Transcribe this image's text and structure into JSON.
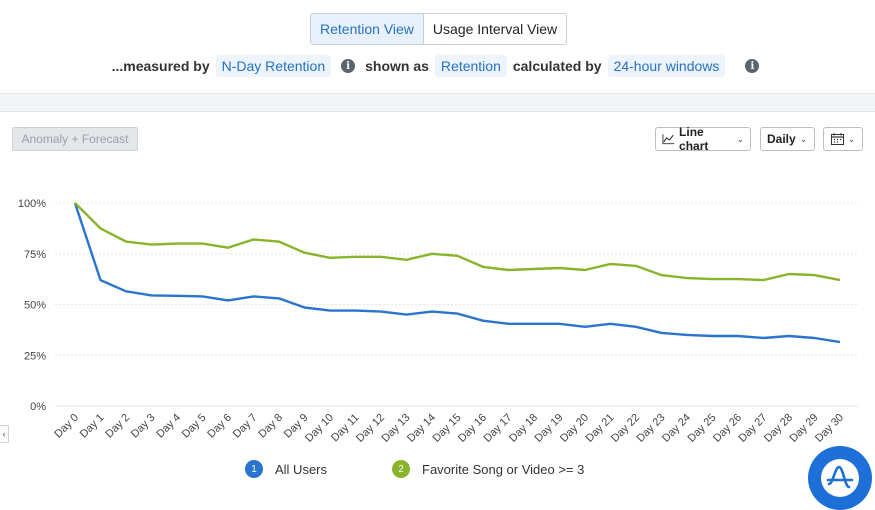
{
  "view_toggle": {
    "options": [
      "Retention View",
      "Usage Interval View"
    ],
    "active": "Retention View"
  },
  "measure_row": {
    "prefix": "...measured by",
    "metric": "N-Day Retention",
    "shown_as_label": "shown as",
    "shown_as": "Retention",
    "calc_label": "calculated by",
    "calc": "24-hour windows"
  },
  "toolbar": {
    "anomaly_label": "Anomaly + Forecast",
    "chart_type_label": "Line chart",
    "interval_label": "Daily",
    "calendar_icon": "calendar-icon"
  },
  "colors": {
    "accent": "#2472c8",
    "series1": "#2a74cf",
    "series2": "#8ab32c",
    "brand": "#1e6fd8"
  },
  "chart_data": {
    "type": "line",
    "categories": [
      "Day 0",
      "Day 1",
      "Day 2",
      "Day 3",
      "Day 4",
      "Day 5",
      "Day 6",
      "Day 7",
      "Day 8",
      "Day 9",
      "Day 10",
      "Day 11",
      "Day 12",
      "Day 13",
      "Day 14",
      "Day 15",
      "Day 16",
      "Day 17",
      "Day 18",
      "Day 19",
      "Day 20",
      "Day 21",
      "Day 22",
      "Day 23",
      "Day 24",
      "Day 25",
      "Day 26",
      "Day 27",
      "Day 28",
      "Day 29",
      "Day 30"
    ],
    "y_ticks": [
      "0%",
      "25%",
      "50%",
      "75%",
      "100%"
    ],
    "ylim": [
      0,
      100
    ],
    "grid": true,
    "legend_position": "bottom",
    "series": [
      {
        "name": "All Users",
        "badge": "1",
        "values": [
          100,
          62,
          56.5,
          54.5,
          54.3,
          54,
          52,
          54,
          53,
          48.5,
          47,
          47,
          46.5,
          45,
          46.5,
          45.5,
          42,
          40.5,
          40.5,
          40.5,
          39,
          40.5,
          39,
          36,
          35,
          34.5,
          34.5,
          33.5,
          34.5,
          33.5,
          31.5
        ]
      },
      {
        "name": "Favorite Song or Video >= 3",
        "badge": "2",
        "values": [
          100,
          87.5,
          81,
          79.5,
          80,
          80,
          78,
          82,
          81,
          75.5,
          73,
          73.5,
          73.5,
          72,
          75,
          74,
          68.5,
          67,
          67.5,
          68,
          67,
          70,
          69,
          64.5,
          63,
          62.5,
          62.5,
          62,
          65,
          64.5,
          62
        ]
      }
    ]
  }
}
